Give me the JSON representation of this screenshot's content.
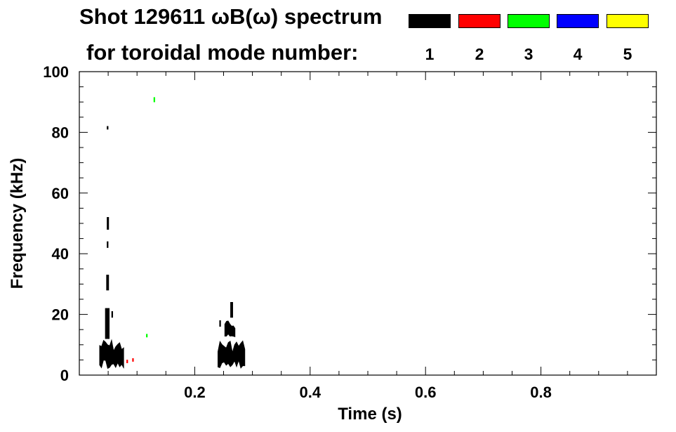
{
  "chart_data": {
    "type": "heatmap",
    "title_line1": "Shot 129611 ωB(ω) spectrum",
    "title_line2": "for toroidal mode number:",
    "xlabel": "Time (s)",
    "ylabel": "Frequency (kHz)",
    "xlim": [
      0.0,
      1.0
    ],
    "ylim": [
      0,
      100
    ],
    "x_ticks": [
      0.2,
      0.4,
      0.6,
      0.8
    ],
    "x_tick_labels": [
      "0.2",
      "0.4",
      "0.6",
      "0.8"
    ],
    "y_ticks": [
      0,
      20,
      40,
      60,
      80,
      100
    ],
    "y_tick_labels": [
      "0",
      "20",
      "40",
      "60",
      "80",
      "100"
    ],
    "grid": false,
    "legend_placement": "top-right",
    "legend": [
      {
        "label": "1",
        "color": "#000000"
      },
      {
        "label": "2",
        "color": "#ff0000"
      },
      {
        "label": "3",
        "color": "#00ff00"
      },
      {
        "label": "4",
        "color": "#0000ff"
      },
      {
        "label": "5",
        "color": "#ffff00"
      }
    ],
    "features": [
      {
        "mode": 1,
        "t_start": 0.035,
        "t_end": 0.077,
        "f_low": 2,
        "f_high": 12
      },
      {
        "mode": 1,
        "t_start": 0.045,
        "t_end": 0.052,
        "f_low": 12,
        "f_high": 22
      },
      {
        "mode": 1,
        "t_start": 0.047,
        "t_end": 0.051,
        "f_low": 28,
        "f_high": 33
      },
      {
        "mode": 1,
        "t_start": 0.048,
        "t_end": 0.05,
        "f_low": 42,
        "f_high": 44
      },
      {
        "mode": 1,
        "t_start": 0.048,
        "t_end": 0.051,
        "f_low": 48,
        "f_high": 52
      },
      {
        "mode": 1,
        "t_start": 0.048,
        "t_end": 0.05,
        "f_low": 81,
        "f_high": 82
      },
      {
        "mode": 1,
        "t_start": 0.056,
        "t_end": 0.058,
        "f_low": 19,
        "f_high": 21
      },
      {
        "mode": 1,
        "t_start": 0.24,
        "t_end": 0.287,
        "f_low": 2,
        "f_high": 12
      },
      {
        "mode": 1,
        "t_start": 0.252,
        "t_end": 0.27,
        "f_low": 12,
        "f_high": 18
      },
      {
        "mode": 1,
        "t_start": 0.262,
        "t_end": 0.266,
        "f_low": 19,
        "f_high": 24
      },
      {
        "mode": 1,
        "t_start": 0.243,
        "t_end": 0.245,
        "f_low": 16,
        "f_high": 18
      },
      {
        "mode": 2,
        "t_start": 0.082,
        "t_end": 0.084,
        "f_low": 4,
        "f_high": 5
      },
      {
        "mode": 2,
        "t_start": 0.092,
        "t_end": 0.094,
        "f_low": 4.5,
        "f_high": 5.5
      },
      {
        "mode": 3,
        "t_start": 0.116,
        "t_end": 0.118,
        "f_low": 12.5,
        "f_high": 13.5
      },
      {
        "mode": 3,
        "t_start": 0.129,
        "t_end": 0.131,
        "f_low": 90,
        "f_high": 91.5
      }
    ]
  }
}
